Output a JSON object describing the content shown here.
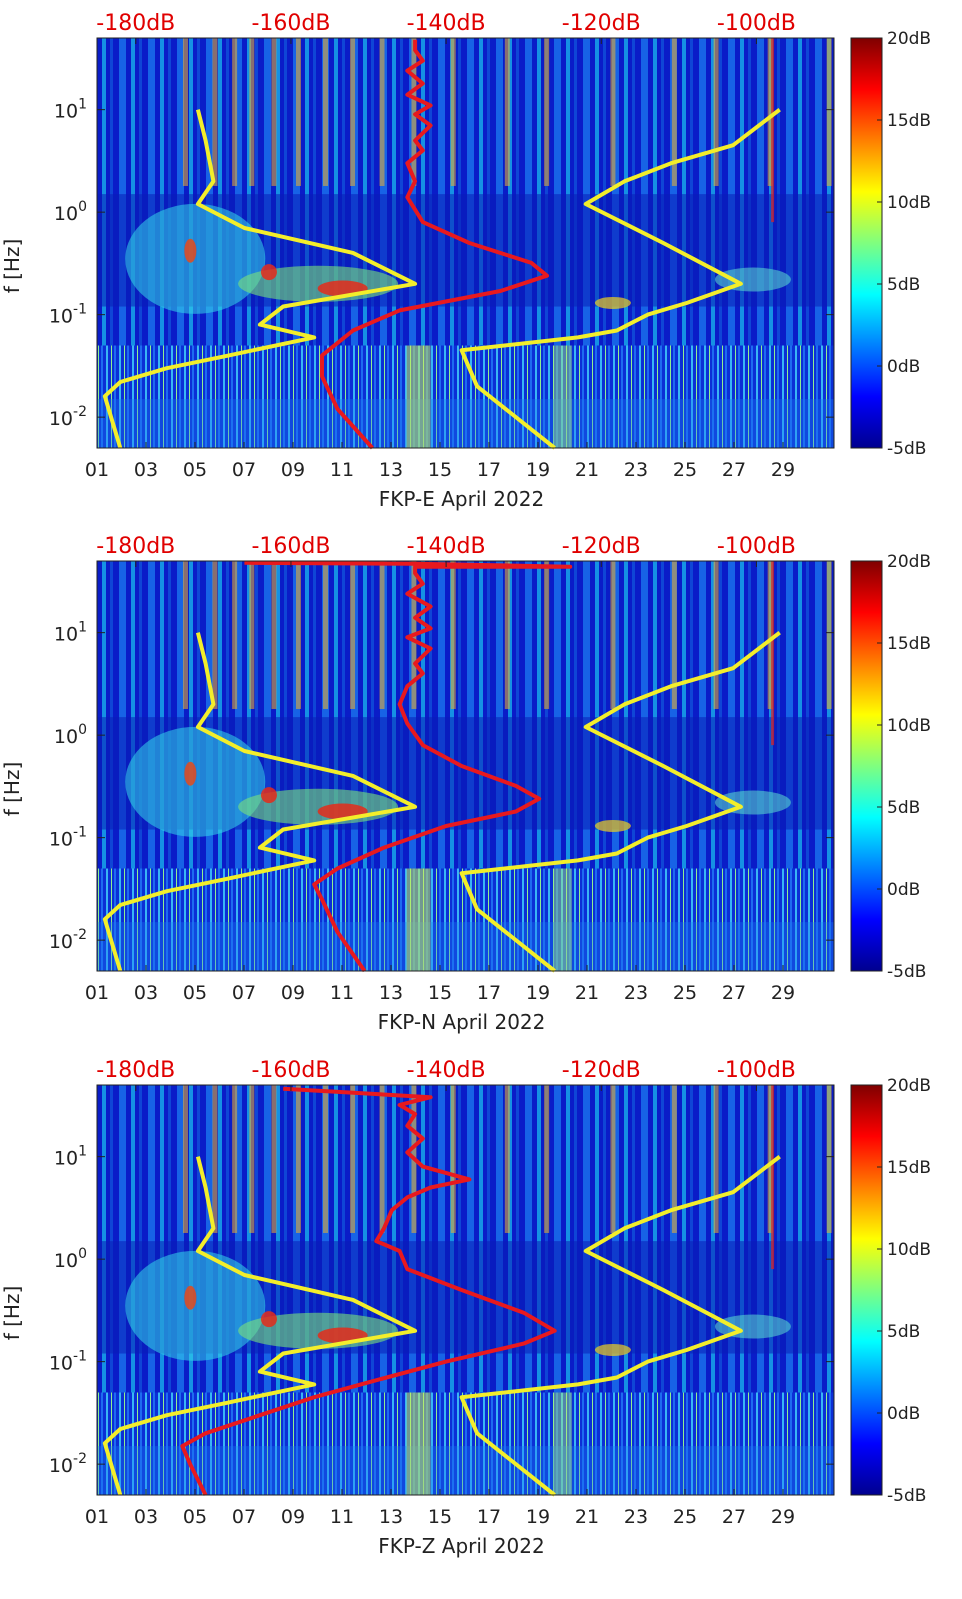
{
  "chart_data": [
    {
      "type": "heatmap",
      "station": "FKP-E",
      "xlabel": "FKP-E April 2022",
      "ylabel": "f [Hz]",
      "x_ticks": [
        "01",
        "03",
        "05",
        "07",
        "09",
        "11",
        "13",
        "15",
        "17",
        "19",
        "21",
        "23",
        "25",
        "27",
        "29"
      ],
      "y_ticks": [
        {
          "value": 0.01,
          "base": "10",
          "exp": "-2"
        },
        {
          "value": 0.1,
          "base": "10",
          "exp": "-1"
        },
        {
          "value": 1,
          "base": "10",
          "exp": "0"
        },
        {
          "value": 10,
          "base": "10",
          "exp": "1"
        }
      ],
      "y_scale": "log",
      "ylim": [
        0.005,
        50
      ],
      "xlim": [
        1,
        31
      ],
      "top_axis_ticks": [
        "-180dB",
        "-160dB",
        "-140dB",
        "-120dB",
        "-100dB"
      ],
      "top_axis_range": [
        -185,
        -90
      ],
      "colorbar": {
        "ticks": [
          "20dB",
          "15dB",
          "10dB",
          "5dB",
          "0dB",
          "-5dB"
        ],
        "range": [
          -5,
          20
        ],
        "colormap": "jet"
      },
      "curve_colors": {
        "red": "#e8191e",
        "yellow": "#f3ee2b"
      },
      "red_curve": [
        [
          -149.5,
          0.005
        ],
        [
          -154,
          0.012
        ],
        [
          -156,
          0.025
        ],
        [
          -156,
          0.04
        ],
        [
          -152,
          0.07
        ],
        [
          -146,
          0.11
        ],
        [
          -133,
          0.17
        ],
        [
          -127,
          0.24
        ],
        [
          -129,
          0.32
        ],
        [
          -137,
          0.5
        ],
        [
          -143,
          0.8
        ],
        [
          -145,
          1.4
        ],
        [
          -144,
          2
        ],
        [
          -145,
          3
        ],
        [
          -143,
          4
        ],
        [
          -144,
          5
        ],
        [
          -142,
          7
        ],
        [
          -144,
          9
        ],
        [
          -142,
          11
        ],
        [
          -145,
          14
        ],
        [
          -143,
          18
        ],
        [
          -145,
          24
        ],
        [
          -143,
          30
        ],
        [
          -144,
          38
        ],
        [
          -144,
          48
        ]
      ],
      "yellow_low_curve": [
        [
          -182,
          0.005
        ],
        [
          -184,
          0.016
        ],
        [
          -182,
          0.022
        ],
        [
          -176,
          0.03
        ],
        [
          -168,
          0.04
        ],
        [
          -157,
          0.06
        ],
        [
          -164,
          0.08
        ],
        [
          -161,
          0.12
        ],
        [
          -144,
          0.2
        ],
        [
          -152,
          0.4
        ],
        [
          -166,
          0.7
        ],
        [
          -172,
          1.2
        ],
        [
          -170,
          2
        ],
        [
          -171,
          5
        ],
        [
          -172,
          10
        ]
      ],
      "yellow_high_curve": [
        [
          -126,
          0.005
        ],
        [
          -136,
          0.02
        ],
        [
          -138,
          0.045
        ],
        [
          -123,
          0.06
        ],
        [
          -118,
          0.07
        ],
        [
          -114,
          0.1
        ],
        [
          -109,
          0.13
        ],
        [
          -102,
          0.2
        ],
        [
          -112,
          0.5
        ],
        [
          -122,
          1.2
        ],
        [
          -117,
          2
        ],
        [
          -111,
          3
        ],
        [
          -103,
          4.5
        ],
        [
          -97,
          10
        ]
      ]
    },
    {
      "type": "heatmap",
      "station": "FKP-N",
      "xlabel": "FKP-N April 2022",
      "ylabel": "f [Hz]",
      "x_ticks": [
        "01",
        "03",
        "05",
        "07",
        "09",
        "11",
        "13",
        "15",
        "17",
        "19",
        "21",
        "23",
        "25",
        "27",
        "29"
      ],
      "y_ticks": [
        {
          "value": 0.01,
          "base": "10",
          "exp": "-2"
        },
        {
          "value": 0.1,
          "base": "10",
          "exp": "-1"
        },
        {
          "value": 1,
          "base": "10",
          "exp": "0"
        },
        {
          "value": 10,
          "base": "10",
          "exp": "1"
        }
      ],
      "y_scale": "log",
      "ylim": [
        0.005,
        50
      ],
      "xlim": [
        1,
        31
      ],
      "top_axis_ticks": [
        "-180dB",
        "-160dB",
        "-140dB",
        "-120dB",
        "-100dB"
      ],
      "top_axis_range": [
        -185,
        -90
      ],
      "colorbar": {
        "ticks": [
          "20dB",
          "15dB",
          "10dB",
          "5dB",
          "0dB",
          "-5dB"
        ],
        "range": [
          -5,
          20
        ],
        "colormap": "jet"
      },
      "curve_colors": {
        "red": "#e8191e",
        "yellow": "#f3ee2b"
      },
      "red_curve": [
        [
          -150.5,
          0.005
        ],
        [
          -154,
          0.012
        ],
        [
          -156,
          0.025
        ],
        [
          -157,
          0.035
        ],
        [
          -154,
          0.05
        ],
        [
          -148,
          0.08
        ],
        [
          -140,
          0.13
        ],
        [
          -131,
          0.18
        ],
        [
          -128,
          0.24
        ],
        [
          -131,
          0.32
        ],
        [
          -138,
          0.5
        ],
        [
          -143,
          0.8
        ],
        [
          -145,
          1.3
        ],
        [
          -146,
          2
        ],
        [
          -145,
          3
        ],
        [
          -143,
          4
        ],
        [
          -144,
          5
        ],
        [
          -142,
          7
        ],
        [
          -145,
          9
        ],
        [
          -142,
          11
        ],
        [
          -144,
          14
        ],
        [
          -142,
          18
        ],
        [
          -145,
          24
        ],
        [
          -143,
          30
        ],
        [
          -144,
          38
        ],
        [
          -144,
          44
        ],
        [
          -124,
          44
        ],
        [
          -144,
          47
        ],
        [
          -166,
          48
        ]
      ],
      "yellow_low_curve": [
        [
          -182,
          0.005
        ],
        [
          -184,
          0.016
        ],
        [
          -182,
          0.022
        ],
        [
          -176,
          0.03
        ],
        [
          -168,
          0.04
        ],
        [
          -157,
          0.06
        ],
        [
          -164,
          0.08
        ],
        [
          -161,
          0.12
        ],
        [
          -144,
          0.2
        ],
        [
          -152,
          0.4
        ],
        [
          -166,
          0.7
        ],
        [
          -172,
          1.2
        ],
        [
          -170,
          2
        ],
        [
          -171,
          5
        ],
        [
          -172,
          10
        ]
      ],
      "yellow_high_curve": [
        [
          -126,
          0.005
        ],
        [
          -136,
          0.02
        ],
        [
          -138,
          0.045
        ],
        [
          -123,
          0.06
        ],
        [
          -118,
          0.07
        ],
        [
          -114,
          0.1
        ],
        [
          -109,
          0.13
        ],
        [
          -102,
          0.2
        ],
        [
          -112,
          0.5
        ],
        [
          -122,
          1.2
        ],
        [
          -117,
          2
        ],
        [
          -111,
          3
        ],
        [
          -103,
          4.5
        ],
        [
          -97,
          10
        ]
      ]
    },
    {
      "type": "heatmap",
      "station": "FKP-Z",
      "xlabel": "FKP-Z April 2022",
      "ylabel": "f [Hz]",
      "x_ticks": [
        "01",
        "03",
        "05",
        "07",
        "09",
        "11",
        "13",
        "15",
        "17",
        "19",
        "21",
        "23",
        "25",
        "27",
        "29"
      ],
      "y_ticks": [
        {
          "value": 0.01,
          "base": "10",
          "exp": "-2"
        },
        {
          "value": 0.1,
          "base": "10",
          "exp": "-1"
        },
        {
          "value": 1,
          "base": "10",
          "exp": "0"
        },
        {
          "value": 10,
          "base": "10",
          "exp": "1"
        }
      ],
      "y_scale": "log",
      "ylim": [
        0.005,
        50
      ],
      "xlim": [
        1,
        31
      ],
      "top_axis_ticks": [
        "-180dB",
        "-160dB",
        "-140dB",
        "-120dB",
        "-100dB"
      ],
      "top_axis_range": [
        -185,
        -90
      ],
      "colorbar": {
        "ticks": [
          "20dB",
          "15dB",
          "10dB",
          "5dB",
          "0dB",
          "-5dB"
        ],
        "range": [
          -5,
          20
        ],
        "colormap": "jet"
      },
      "curve_colors": {
        "red": "#e8191e",
        "yellow": "#f3ee2b"
      },
      "red_curve": [
        [
          -171,
          0.005
        ],
        [
          -173,
          0.01
        ],
        [
          -174,
          0.015
        ],
        [
          -171,
          0.02
        ],
        [
          -164,
          0.03
        ],
        [
          -157,
          0.045
        ],
        [
          -151,
          0.06
        ],
        [
          -140,
          0.1
        ],
        [
          -130,
          0.15
        ],
        [
          -126,
          0.2
        ],
        [
          -130,
          0.3
        ],
        [
          -138,
          0.5
        ],
        [
          -145,
          0.8
        ],
        [
          -146,
          1.2
        ],
        [
          -149,
          1.5
        ],
        [
          -148,
          2
        ],
        [
          -147,
          3
        ],
        [
          -145,
          4
        ],
        [
          -142,
          5
        ],
        [
          -137,
          6
        ],
        [
          -143,
          8
        ],
        [
          -145,
          11
        ],
        [
          -143,
          15
        ],
        [
          -145,
          20
        ],
        [
          -144,
          26
        ],
        [
          -146,
          32
        ],
        [
          -142,
          38
        ],
        [
          -161,
          46
        ]
      ],
      "yellow_low_curve": [
        [
          -182,
          0.005
        ],
        [
          -184,
          0.016
        ],
        [
          -182,
          0.022
        ],
        [
          -176,
          0.03
        ],
        [
          -168,
          0.04
        ],
        [
          -157,
          0.06
        ],
        [
          -164,
          0.08
        ],
        [
          -161,
          0.12
        ],
        [
          -144,
          0.2
        ],
        [
          -152,
          0.4
        ],
        [
          -166,
          0.7
        ],
        [
          -172,
          1.2
        ],
        [
          -170,
          2
        ],
        [
          -171,
          5
        ],
        [
          -172,
          10
        ]
      ],
      "yellow_high_curve": [
        [
          -126,
          0.005
        ],
        [
          -136,
          0.02
        ],
        [
          -138,
          0.045
        ],
        [
          -123,
          0.06
        ],
        [
          -118,
          0.07
        ],
        [
          -114,
          0.1
        ],
        [
          -109,
          0.13
        ],
        [
          -102,
          0.2
        ],
        [
          -112,
          0.5
        ],
        [
          -122,
          1.2
        ],
        [
          -117,
          2
        ],
        [
          -111,
          3
        ],
        [
          -103,
          4.5
        ],
        [
          -97,
          10
        ]
      ]
    }
  ]
}
